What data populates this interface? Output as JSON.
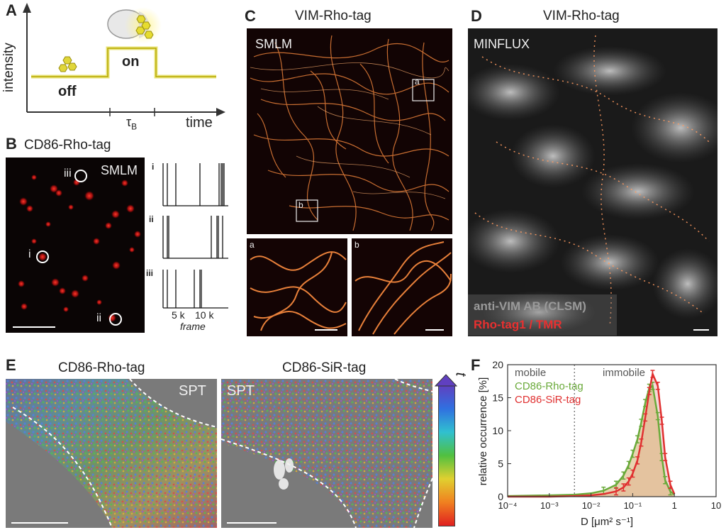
{
  "panelA": {
    "label": "A",
    "ylabel": "intensity",
    "xlabel": "time",
    "off": "off",
    "on": "on",
    "tau": "τ",
    "tau_sub": "B"
  },
  "panelB": {
    "label": "B",
    "title": "CD86-Rho-tag",
    "img_label": "SMLM",
    "markers": [
      "iii",
      "i",
      "ii"
    ],
    "trace_labels": [
      "i",
      "ii",
      "iii"
    ],
    "xticks": [
      "5 k",
      "10 k"
    ],
    "xlabel": "frame"
  },
  "panelC": {
    "label": "C",
    "title": "VIM-Rho-tag",
    "img_label": "SMLM",
    "box_a": "a",
    "box_b": "b",
    "inset_a": "a",
    "inset_b": "b"
  },
  "panelD": {
    "label": "D",
    "title": "VIM-Rho-tag",
    "img_label": "MINFLUX",
    "legend1": "anti-VIM AB (CLSM)",
    "legend2": "Rho-tag1 / TMR"
  },
  "panelE": {
    "label": "E",
    "title_left": "CD86-Rho-tag",
    "title_right": "CD86-SiR-tag",
    "spt_left": "SPT",
    "spt_right": "SPT",
    "colorbar_label": "t"
  },
  "panelF": {
    "label": "F",
    "chart_data": {
      "type": "area",
      "xlabel": "D [μm² s⁻¹]",
      "ylabel": "relative occurrence [%]",
      "xscale": "log",
      "xlim": [
        0.0001,
        10
      ],
      "ylim": [
        0,
        20
      ],
      "xticks": [
        "10⁻⁴",
        "10⁻³",
        "10⁻²",
        "10⁻¹",
        "1",
        "10"
      ],
      "yticks": [
        "0",
        "5",
        "10",
        "15",
        "20"
      ],
      "threshold_x": 0.004,
      "region_left": "mobile",
      "region_right": "immobile",
      "grid": false,
      "legend_position": "top-left",
      "series": [
        {
          "name": "CD86-Rho-tag",
          "color": "#6aaa3a",
          "x": [
            0.0001,
            0.001,
            0.004,
            0.01,
            0.02,
            0.04,
            0.06,
            0.08,
            0.1,
            0.13,
            0.16,
            0.2,
            0.25,
            0.3,
            0.4,
            0.5,
            0.6,
            0.8,
            1.0
          ],
          "y": [
            0.1,
            0.2,
            0.3,
            0.5,
            0.9,
            1.8,
            3.2,
            4.8,
            6.5,
            8.7,
            11.2,
            14.2,
            16.5,
            16.8,
            12.2,
            6.0,
            2.5,
            0.8,
            0.3
          ]
        },
        {
          "name": "CD86-SiR-tag",
          "color": "#e03030",
          "x": [
            0.0001,
            0.001,
            0.004,
            0.01,
            0.02,
            0.04,
            0.06,
            0.08,
            0.1,
            0.13,
            0.16,
            0.2,
            0.25,
            0.3,
            0.4,
            0.5,
            0.6,
            0.8,
            1.0
          ],
          "y": [
            0.0,
            0.0,
            0.1,
            0.2,
            0.4,
            0.8,
            1.4,
            2.3,
            3.5,
            5.5,
            8.2,
            12.0,
            16.0,
            18.6,
            16.8,
            11.5,
            6.0,
            1.8,
            0.4
          ]
        }
      ]
    }
  }
}
